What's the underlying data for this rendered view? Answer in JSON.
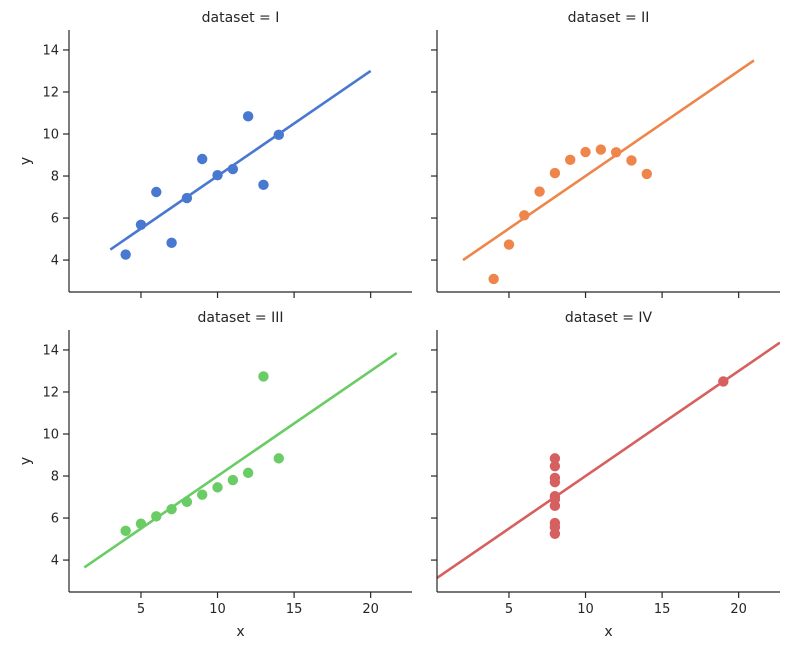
{
  "chart_data": [
    {
      "type": "scatter",
      "title": "dataset = I",
      "color": "#4878d0",
      "x": [
        10,
        8,
        13,
        9,
        11,
        14,
        6,
        4,
        12,
        7,
        5
      ],
      "y": [
        8.04,
        6.95,
        7.58,
        8.81,
        8.33,
        9.96,
        7.24,
        4.26,
        10.84,
        4.82,
        5.68
      ],
      "fit": {
        "intercept": 3.0,
        "slope": 0.5,
        "x_range": [
          3,
          20
        ]
      },
      "ylabel": "y",
      "xlabel": ""
    },
    {
      "type": "scatter",
      "title": "dataset = II",
      "color": "#ee854a",
      "x": [
        10,
        8,
        13,
        9,
        11,
        14,
        6,
        4,
        12,
        7,
        5
      ],
      "y": [
        9.14,
        8.14,
        8.74,
        8.77,
        9.26,
        8.1,
        6.13,
        3.1,
        9.13,
        7.26,
        4.74
      ],
      "fit": {
        "intercept": 3.0,
        "slope": 0.5,
        "x_range": [
          2,
          21
        ]
      },
      "ylabel": "",
      "xlabel": ""
    },
    {
      "type": "scatter",
      "title": "dataset = III",
      "color": "#6acc64",
      "x": [
        10,
        8,
        13,
        9,
        11,
        14,
        6,
        4,
        12,
        7,
        5
      ],
      "y": [
        7.46,
        6.77,
        12.74,
        7.11,
        7.81,
        8.84,
        6.08,
        5.39,
        8.15,
        6.42,
        5.73
      ],
      "fit": {
        "intercept": 3.0,
        "slope": 0.5,
        "x_range": [
          1.3,
          21.7
        ]
      },
      "ylabel": "y",
      "xlabel": "x"
    },
    {
      "type": "scatter",
      "title": "dataset = IV",
      "color": "#d65f5f",
      "x": [
        8,
        8,
        8,
        8,
        8,
        8,
        8,
        19,
        8,
        8,
        8
      ],
      "y": [
        6.58,
        5.76,
        7.71,
        8.84,
        8.47,
        7.04,
        5.25,
        12.5,
        5.56,
        7.91,
        6.89
      ],
      "fit": {
        "intercept": 3.0,
        "slope": 0.5,
        "x_range": [
          0.2,
          22.7
        ]
      },
      "ylabel": "",
      "xlabel": "x"
    }
  ],
  "axes": {
    "xlim": [
      0.3,
      22.7
    ],
    "ylim": [
      2.48,
      14.95
    ],
    "xticks": [
      5,
      10,
      15,
      20
    ],
    "yticks": [
      4,
      6,
      8,
      10,
      12,
      14
    ]
  }
}
